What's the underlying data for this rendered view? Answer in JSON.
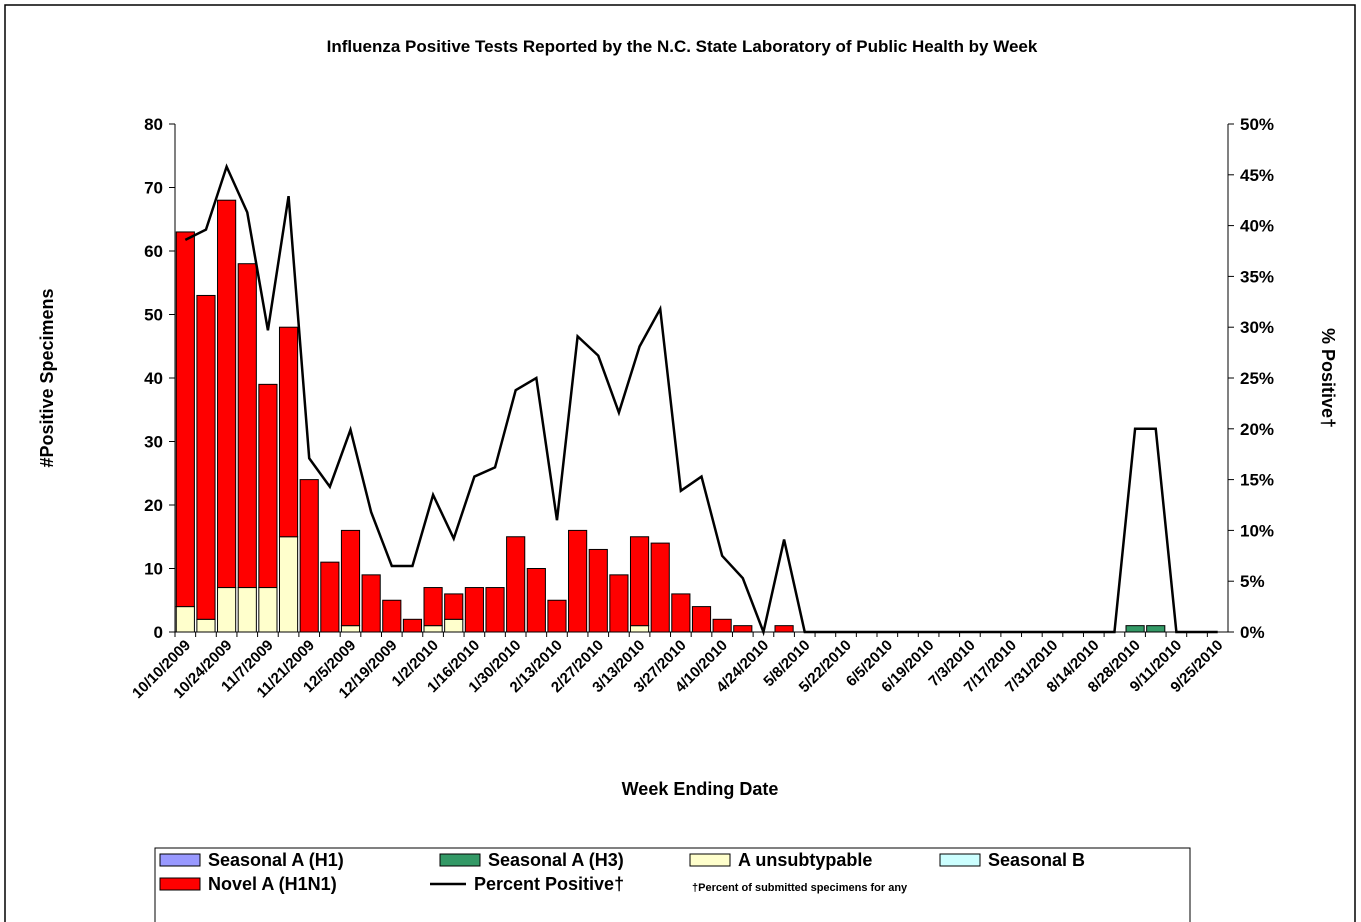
{
  "chart_data": {
    "type": "bar",
    "stacked": true,
    "title": "Influenza Positive Tests Reported by the N.C. State Laboratory of Public Health by Week",
    "y_label": "#Positive Specimens",
    "y2_label": "% Positive†",
    "x_label": "Week Ending Date",
    "footnote": "†Percent of submitted specimens for any",
    "categories": [
      "10/10/2009",
      null,
      "10/24/2009",
      null,
      "11/7/2009",
      null,
      "11/21/2009",
      null,
      "12/5/2009",
      null,
      "12/19/2009",
      null,
      "1/2/2010",
      null,
      "1/16/2010",
      null,
      "1/30/2010",
      null,
      "2/13/2010",
      null,
      "2/27/2010",
      null,
      "3/13/2010",
      null,
      "3/27/2010",
      null,
      "4/10/2010",
      null,
      "4/24/2010",
      null,
      "5/8/2010",
      null,
      "5/22/2010",
      null,
      "6/5/2010",
      null,
      "6/19/2010",
      null,
      "7/3/2010",
      null,
      "7/17/2010",
      null,
      "7/31/2010",
      null,
      "8/14/2010",
      null,
      "8/28/2010",
      null,
      "9/11/2010",
      null,
      "9/25/2010"
    ],
    "ylim": [
      0,
      80
    ],
    "yticks": [
      0,
      10,
      20,
      30,
      40,
      50,
      60,
      70,
      80
    ],
    "y2lim": [
      0,
      50
    ],
    "y2ticks": [
      {
        "value": 0,
        "label": "0%"
      },
      {
        "value": 5,
        "label": "5%"
      },
      {
        "value": 10,
        "label": "10%"
      },
      {
        "value": 15,
        "label": "15%"
      },
      {
        "value": 20,
        "label": "20%"
      },
      {
        "value": 25,
        "label": "25%"
      },
      {
        "value": 30,
        "label": "30%"
      },
      {
        "value": 35,
        "label": "35%"
      },
      {
        "value": 40,
        "label": "40%"
      },
      {
        "value": 45,
        "label": "45%"
      },
      {
        "value": 50,
        "label": "50%"
      }
    ],
    "series": [
      {
        "name": "Seasonal A (H1)",
        "color": "#9999ff",
        "values": [
          0,
          0,
          0,
          0,
          0,
          0,
          0,
          0,
          0,
          0,
          0,
          0,
          0,
          0,
          0,
          0,
          0,
          0,
          0,
          0,
          0,
          0,
          0,
          0,
          0,
          0,
          0,
          0,
          0,
          0,
          0,
          0,
          0,
          0,
          0,
          0,
          0,
          0,
          0,
          0,
          0,
          0,
          0,
          0,
          0,
          0,
          0,
          0,
          0,
          0,
          0
        ]
      },
      {
        "name": "Seasonal A (H3)",
        "color": "#339966",
        "values": [
          0,
          0,
          0,
          0,
          0,
          0,
          0,
          0,
          0,
          0,
          0,
          0,
          0,
          0,
          0,
          0,
          0,
          0,
          0,
          0,
          0,
          0,
          0,
          0,
          0,
          0,
          0,
          0,
          0,
          0,
          0,
          0,
          0,
          0,
          0,
          0,
          0,
          0,
          0,
          0,
          0,
          0,
          0,
          0,
          0,
          0,
          1,
          1,
          0,
          0,
          0
        ]
      },
      {
        "name": "A unsubtypable",
        "color": "#ffffcc",
        "values": [
          4,
          2,
          7,
          7,
          7,
          15,
          0,
          0,
          1,
          0,
          0,
          0,
          1,
          2,
          0,
          0,
          0,
          0,
          0,
          0,
          0,
          0,
          1,
          0,
          0,
          0,
          0,
          0,
          0,
          0,
          0,
          0,
          0,
          0,
          0,
          0,
          0,
          0,
          0,
          0,
          0,
          0,
          0,
          0,
          0,
          0,
          0,
          0,
          0,
          0,
          0
        ]
      },
      {
        "name": "Seasonal B",
        "color": "#ccffff",
        "values": [
          0,
          0,
          0,
          0,
          0,
          0,
          0,
          0,
          0,
          0,
          0,
          0,
          0,
          0,
          0,
          0,
          0,
          0,
          0,
          0,
          0,
          0,
          0,
          0,
          0,
          0,
          0,
          0,
          0,
          0,
          0,
          0,
          0,
          0,
          0,
          0,
          0,
          0,
          0,
          0,
          0,
          0,
          0,
          0,
          0,
          0,
          0,
          0,
          0,
          0,
          0
        ]
      },
      {
        "name": "Novel A (H1N1)",
        "color": "#ff0000",
        "values": [
          59,
          51,
          61,
          51,
          32,
          33,
          24,
          11,
          15,
          9,
          5,
          2,
          6,
          4,
          7,
          7,
          15,
          10,
          5,
          16,
          13,
          9,
          14,
          14,
          6,
          4,
          2,
          1,
          0,
          1,
          0,
          0,
          0,
          0,
          0,
          0,
          0,
          0,
          0,
          0,
          0,
          0,
          0,
          0,
          0,
          0,
          0,
          0,
          0,
          0,
          0
        ]
      },
      {
        "name": "Percent Positive†",
        "type": "line",
        "axis": "y2",
        "color": "#000000",
        "values": [
          38.6,
          39.6,
          45.8,
          41.3,
          29.7,
          42.9,
          17.1,
          14.3,
          19.9,
          11.8,
          6.5,
          6.5,
          13.5,
          9.2,
          15.3,
          16.2,
          23.8,
          25,
          11,
          29.1,
          27.2,
          21.6,
          28.1,
          31.8,
          13.9,
          15.3,
          7.5,
          5.3,
          0,
          9.1,
          0,
          0,
          0,
          0,
          0,
          0,
          0,
          0,
          0,
          0,
          0,
          0,
          0,
          0,
          0,
          0,
          20,
          20,
          0,
          0,
          0
        ]
      }
    ]
  }
}
